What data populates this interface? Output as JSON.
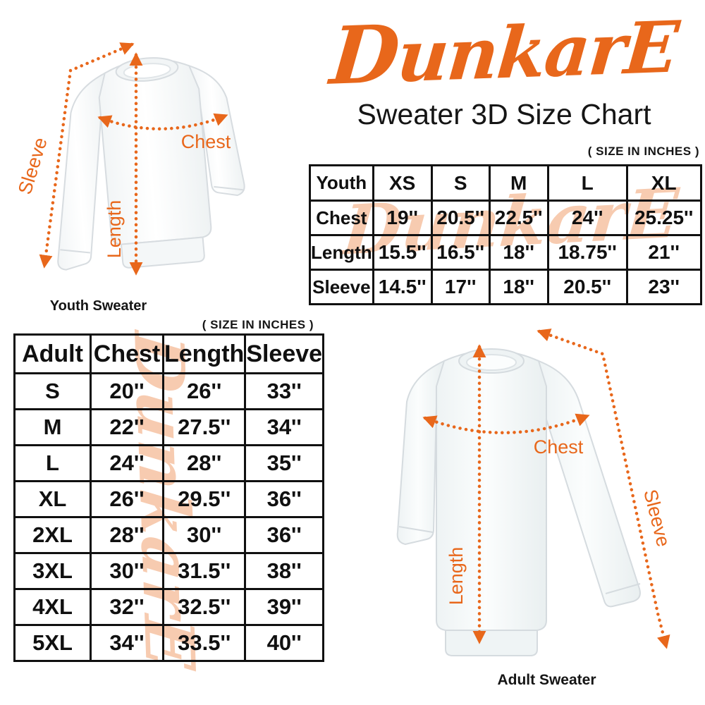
{
  "colors": {
    "accent_orange": "#E8671B",
    "watermark_peach": "#F7CBB0",
    "table_border": "#101010",
    "text": "#151515",
    "background": "#FFFFFF"
  },
  "brand": {
    "logo_text": "DunkarE"
  },
  "header": {
    "title": "Sweater 3D Size Chart"
  },
  "size_note": "( SIZE IN INCHES )",
  "watermark": {
    "text": "DunkarE"
  },
  "youth_figure": {
    "caption": "Youth Sweater",
    "chest_label": "Chest",
    "length_label": "Length",
    "sleeve_label": "Sleeve"
  },
  "adult_figure": {
    "caption": "Adult Sweater",
    "chest_label": "Chest",
    "length_label": "Length",
    "sleeve_label": "Sleeve"
  },
  "youth_table": {
    "columns": [
      "Youth",
      "XS",
      "S",
      "M",
      "L",
      "XL"
    ],
    "rows": [
      {
        "label": "Chest",
        "values": [
          "19''",
          "20.5''",
          "22.5''",
          "24''",
          "25.25''"
        ]
      },
      {
        "label": "Length",
        "values": [
          "15.5''",
          "16.5''",
          "18''",
          "18.75''",
          "21''"
        ]
      },
      {
        "label": "Sleeve",
        "values": [
          "14.5''",
          "17''",
          "18''",
          "20.5''",
          "23''"
        ]
      }
    ]
  },
  "adult_table": {
    "columns": [
      "Adult",
      "Chest",
      "Length",
      "Sleeve"
    ],
    "rows": [
      {
        "label": "S",
        "values": [
          "20''",
          "26''",
          "33''"
        ]
      },
      {
        "label": "M",
        "values": [
          "22''",
          "27.5''",
          "34''"
        ]
      },
      {
        "label": "L",
        "values": [
          "24''",
          "28''",
          "35''"
        ]
      },
      {
        "label": "XL",
        "values": [
          "26''",
          "29.5''",
          "36''"
        ]
      },
      {
        "label": "2XL",
        "values": [
          "28''",
          "30''",
          "36''"
        ]
      },
      {
        "label": "3XL",
        "values": [
          "30''",
          "31.5''",
          "38''"
        ]
      },
      {
        "label": "4XL",
        "values": [
          "32''",
          "32.5''",
          "39''"
        ]
      },
      {
        "label": "5XL",
        "values": [
          "34''",
          "33.5''",
          "40''"
        ]
      }
    ]
  }
}
